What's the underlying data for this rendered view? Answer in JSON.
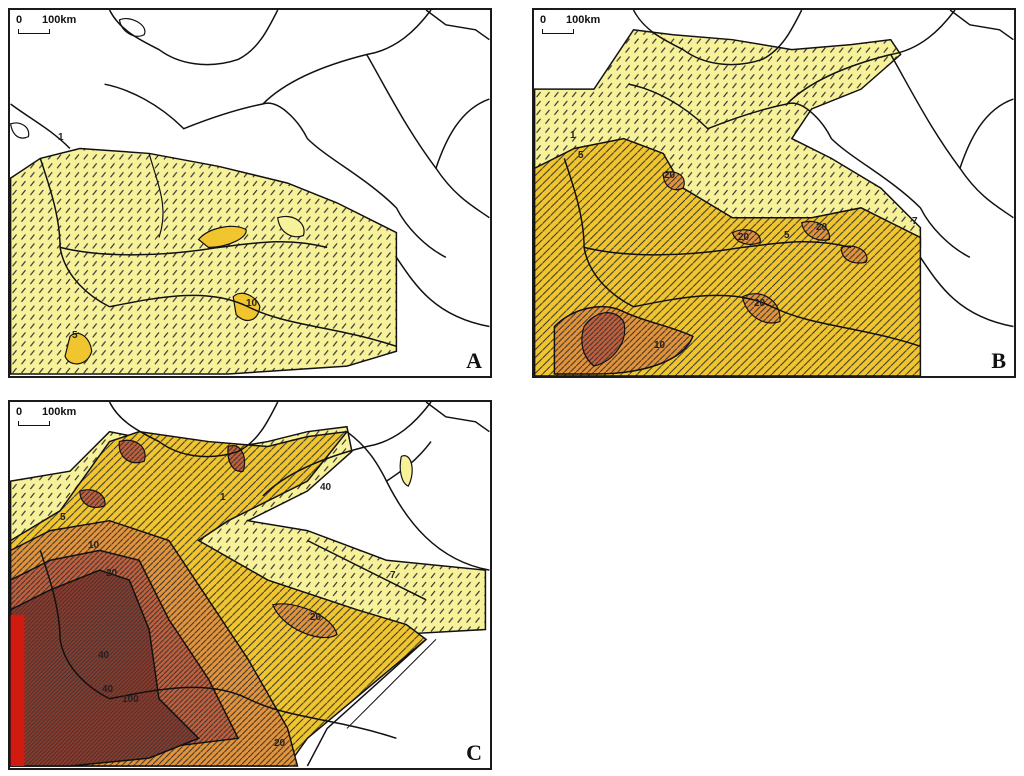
{
  "scale_bar": {
    "zero": "0",
    "distance": "100km"
  },
  "colors": {
    "zone_1": "#f7f29a",
    "zone_5": "#f0c52e",
    "zone_10": "#e3933a",
    "zone_20": "#c25f3c",
    "zone_40": "#8c3a2c",
    "zone_max": "#d11a10",
    "boundary": "#111111"
  },
  "panels": [
    {
      "label": "A",
      "contour_labels": [
        "1",
        "5",
        "10"
      ]
    },
    {
      "label": "B",
      "contour_labels": [
        "1",
        "5",
        "7",
        "10",
        "20",
        "5",
        "20",
        "20",
        "20"
      ]
    },
    {
      "label": "C",
      "contour_labels": [
        "1",
        "5",
        "10",
        "20",
        "40",
        "20",
        "40",
        "100",
        "20",
        "7",
        "40"
      ]
    }
  ]
}
